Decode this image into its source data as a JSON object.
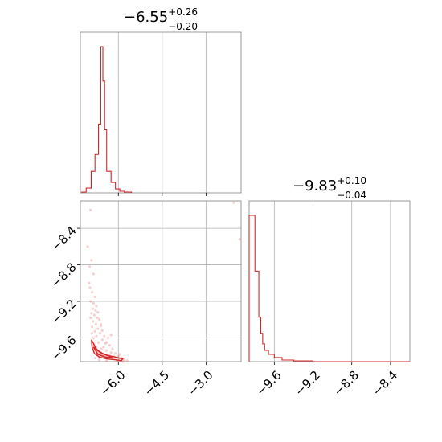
{
  "chart_data": [
    {
      "panel": "marginal-1",
      "type": "histogram",
      "title": {
        "median": "−6.55",
        "plus": "+0.26",
        "minus": "−0.20"
      },
      "xlim": [
        -7.3,
        -1.8
      ],
      "grid": true,
      "x_gridlines": [
        -6.0,
        -4.5,
        -3.0
      ],
      "bins": [
        {
          "x0": -7.25,
          "x1": -7.1,
          "count": 1
        },
        {
          "x0": -7.1,
          "x1": -6.93,
          "count": 6
        },
        {
          "x0": -6.93,
          "x1": -6.8,
          "count": 27
        },
        {
          "x0": -6.8,
          "x1": -6.68,
          "count": 48
        },
        {
          "x0": -6.68,
          "x1": -6.6,
          "count": 86
        },
        {
          "x0": -6.6,
          "x1": -6.53,
          "count": 183
        },
        {
          "x0": -6.53,
          "x1": -6.47,
          "count": 140
        },
        {
          "x0": -6.47,
          "x1": -6.4,
          "count": 79
        },
        {
          "x0": -6.4,
          "x1": -6.25,
          "count": 27
        },
        {
          "x0": -6.25,
          "x1": -6.1,
          "count": 13
        },
        {
          "x0": -6.1,
          "x1": -5.95,
          "count": 5
        },
        {
          "x0": -5.95,
          "x1": -5.8,
          "count": 2
        },
        {
          "x0": -5.8,
          "x1": -5.55,
          "count": 1
        }
      ]
    },
    {
      "panel": "marginal-2",
      "type": "histogram",
      "title": {
        "median": "−9.83",
        "plus": "+0.10",
        "minus": "−0.04"
      },
      "xlim": [
        -9.86,
        -8.2
      ],
      "grid": true,
      "x_gridlines": [
        -9.6,
        -9.2,
        -8.8,
        -8.4
      ],
      "xticks": [
        "−9.6",
        "−9.2",
        "−8.8",
        "−8.4"
      ],
      "xtick_values": [
        -9.6,
        -9.2,
        -8.8,
        -8.4
      ],
      "bins": [
        {
          "x0": -9.86,
          "x1": -9.8,
          "count": 181
        },
        {
          "x0": -9.8,
          "x1": -9.76,
          "count": 112
        },
        {
          "x0": -9.76,
          "x1": -9.74,
          "count": 55
        },
        {
          "x0": -9.74,
          "x1": -9.72,
          "count": 35
        },
        {
          "x0": -9.72,
          "x1": -9.7,
          "count": 22
        },
        {
          "x0": -9.7,
          "x1": -9.66,
          "count": 14
        },
        {
          "x0": -9.66,
          "x1": -9.6,
          "count": 9
        },
        {
          "x0": -9.6,
          "x1": -9.52,
          "count": 5
        },
        {
          "x0": -9.52,
          "x1": -9.4,
          "count": 2
        },
        {
          "x0": -9.4,
          "x1": -9.3,
          "count": 1
        },
        {
          "x0": -9.3,
          "x1": -9.2,
          "count": 1
        },
        {
          "x0": -9.2,
          "x1": -8.2,
          "count": 0
        }
      ]
    },
    {
      "panel": "joint",
      "type": "scatter",
      "xlim": [
        -7.3,
        -1.8
      ],
      "ylim": [
        -9.86,
        -8.1
      ],
      "grid": true,
      "xticks": [
        "−6.0",
        "−4.5",
        "−3.0"
      ],
      "xtick_values": [
        -6.0,
        -4.5,
        -3.0
      ],
      "yticks": [
        "−8.4",
        "−8.8",
        "−9.2",
        "−9.6"
      ],
      "ytick_values": [
        -8.4,
        -8.8,
        -9.2,
        -9.6
      ],
      "points": [
        [
          -6.95,
          -8.2
        ],
        [
          -7.05,
          -8.6
        ],
        [
          -6.98,
          -8.82
        ],
        [
          -6.85,
          -8.9
        ],
        [
          -7.0,
          -9.0
        ],
        [
          -6.9,
          -9.1
        ],
        [
          -6.8,
          -9.15
        ],
        [
          -6.95,
          -9.2
        ],
        [
          -6.85,
          -9.22
        ],
        [
          -6.75,
          -9.25
        ],
        [
          -6.88,
          -9.28
        ],
        [
          -6.78,
          -9.3
        ],
        [
          -6.7,
          -9.32
        ],
        [
          -6.92,
          -9.33
        ],
        [
          -6.82,
          -9.35
        ],
        [
          -6.72,
          -9.38
        ],
        [
          -6.65,
          -9.4
        ],
        [
          -6.87,
          -9.42
        ],
        [
          -6.77,
          -9.45
        ],
        [
          -6.6,
          -9.45
        ],
        [
          -6.9,
          -9.48
        ],
        [
          -6.7,
          -9.5
        ],
        [
          -6.55,
          -9.52
        ],
        [
          -6.8,
          -9.53
        ],
        [
          -6.62,
          -9.55
        ],
        [
          -6.48,
          -9.58
        ],
        [
          -6.75,
          -9.58
        ],
        [
          -6.85,
          -9.6
        ],
        [
          -6.55,
          -9.62
        ],
        [
          -6.4,
          -9.65
        ],
        [
          -6.68,
          -9.65
        ],
        [
          -6.3,
          -9.68
        ],
        [
          -6.5,
          -9.7
        ],
        [
          -6.75,
          -9.7
        ],
        [
          -6.2,
          -9.72
        ],
        [
          -6.4,
          -9.74
        ],
        [
          -6.6,
          -9.76
        ],
        [
          -6.1,
          -9.77
        ],
        [
          -6.3,
          -9.79
        ],
        [
          -6.0,
          -9.8
        ],
        [
          -6.5,
          -9.8
        ],
        [
          -5.9,
          -9.82
        ],
        [
          -6.2,
          -9.83
        ],
        [
          -5.8,
          -9.84
        ],
        [
          -6.65,
          -9.84
        ],
        [
          -6.05,
          -9.85
        ],
        [
          -5.7,
          -9.85
        ],
        [
          -6.4,
          -9.85
        ],
        [
          -5.85,
          -9.86
        ],
        [
          -6.8,
          -9.82
        ],
        [
          -6.7,
          -9.78
        ],
        [
          -6.58,
          -9.72
        ],
        [
          -6.45,
          -9.66
        ],
        [
          -6.35,
          -9.6
        ],
        [
          -6.25,
          -9.57
        ],
        [
          -6.6,
          -9.47
        ],
        [
          -6.95,
          -9.38
        ],
        [
          -6.97,
          -9.05
        ],
        [
          -6.92,
          -8.75
        ],
        [
          -2.05,
          -8.12
        ],
        [
          -1.85,
          -8.52
        ],
        [
          -6.9,
          -9.55
        ],
        [
          -6.82,
          -9.68
        ],
        [
          -6.52,
          -9.78
        ],
        [
          -6.15,
          -9.8
        ],
        [
          -6.0,
          -9.84
        ],
        [
          -5.95,
          -9.78
        ],
        [
          -6.25,
          -9.76
        ]
      ],
      "contour_path": [
        [
          -6.92,
          -9.62
        ],
        [
          -6.9,
          -9.7
        ],
        [
          -6.82,
          -9.77
        ],
        [
          -6.65,
          -9.81
        ],
        [
          -6.4,
          -9.83
        ],
        [
          -6.1,
          -9.84
        ],
        [
          -5.9,
          -9.85
        ],
        [
          -5.85,
          -9.83
        ],
        [
          -6.1,
          -9.81
        ],
        [
          -6.4,
          -9.79
        ],
        [
          -6.62,
          -9.76
        ],
        [
          -6.78,
          -9.71
        ],
        [
          -6.85,
          -9.66
        ],
        [
          -6.92,
          -9.62
        ]
      ],
      "contour_path_inner": [
        [
          -6.85,
          -9.7
        ],
        [
          -6.7,
          -9.78
        ],
        [
          -6.45,
          -9.81
        ],
        [
          -6.2,
          -9.82
        ],
        [
          -6.3,
          -9.8
        ],
        [
          -6.55,
          -9.77
        ],
        [
          -6.75,
          -9.73
        ],
        [
          -6.85,
          -9.7
        ]
      ]
    }
  ],
  "colors": {
    "line": "#d62728",
    "grid": "#b0b0b0",
    "spine": "#808080",
    "text": "#000000"
  }
}
